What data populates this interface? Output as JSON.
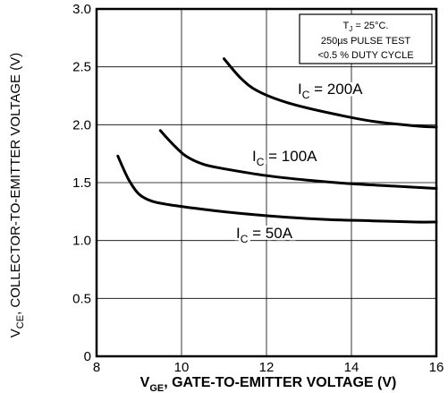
{
  "chart_data": {
    "type": "line",
    "xlabel_main": "GATE-TO-EMITTER VOLTAGE (V)",
    "xlabel_symbol": "V",
    "xlabel_sub": "GE",
    "ylabel_main": "COLLECTOR-TO-EMITTER  VOLTAGE (V)",
    "ylabel_symbol": "V",
    "ylabel_sub": "CE",
    "xlim": [
      8,
      16
    ],
    "ylim": [
      0,
      3.0
    ],
    "xticks": [
      "8",
      "10",
      "12",
      "14",
      "16"
    ],
    "yticks": [
      "0",
      "0.5",
      "1.0",
      "1.5",
      "2.0",
      "2.5",
      "3.0"
    ],
    "grid": true,
    "conditions": {
      "line1_symbol": "T",
      "line1_sub": "J",
      "line1_rest": " = 25°C.",
      "line2": "250µs PULSE TEST",
      "line3": "<0.5 % DUTY CYCLE"
    },
    "series": [
      {
        "name": "IC = 200A",
        "label_symbol": "I",
        "label_sub": "C",
        "label_rest": " = 200A",
        "x": [
          11.0,
          11.4,
          11.8,
          12.5,
          13.5,
          14.5,
          15.5,
          16.0
        ],
        "y": [
          2.57,
          2.4,
          2.29,
          2.19,
          2.1,
          2.03,
          1.99,
          1.98
        ]
      },
      {
        "name": "IC = 100A",
        "label_symbol": "I",
        "label_sub": "C",
        "label_rest": " = 100A",
        "x": [
          9.5,
          9.8,
          10.1,
          10.5,
          11.0,
          12.0,
          13.0,
          14.0,
          15.0,
          16.0
        ],
        "y": [
          1.95,
          1.83,
          1.73,
          1.66,
          1.62,
          1.56,
          1.52,
          1.49,
          1.47,
          1.45
        ]
      },
      {
        "name": "IC = 50A",
        "label_symbol": "I",
        "label_sub": "C",
        "label_rest": " = 50A",
        "x": [
          8.5,
          8.75,
          9.0,
          9.3,
          9.7,
          10.5,
          11.5,
          12.5,
          13.5,
          14.5,
          15.5,
          16.0
        ],
        "y": [
          1.73,
          1.53,
          1.4,
          1.34,
          1.31,
          1.27,
          1.23,
          1.2,
          1.18,
          1.17,
          1.16,
          1.16
        ]
      }
    ]
  }
}
